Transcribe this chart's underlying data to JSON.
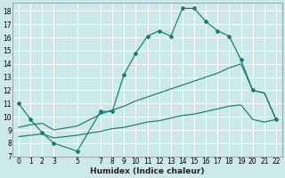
{
  "xlabel": "Humidex (Indice chaleur)",
  "bg_color": "#cce8e8",
  "grid_color": "#ffffff",
  "line_color": "#1a7a6e",
  "xlim": [
    -0.5,
    22.5
  ],
  "ylim": [
    7,
    18.6
  ],
  "xticks": [
    0,
    1,
    2,
    3,
    5,
    7,
    8,
    9,
    10,
    11,
    12,
    13,
    14,
    15,
    16,
    17,
    18,
    19,
    20,
    21,
    22
  ],
  "yticks": [
    7,
    8,
    9,
    10,
    11,
    12,
    13,
    14,
    15,
    16,
    17,
    18
  ],
  "line1_x": [
    0,
    1,
    2,
    3,
    5,
    7,
    8,
    9,
    10,
    11,
    12,
    13,
    14,
    15,
    16,
    17,
    18,
    19,
    20,
    21,
    22
  ],
  "line1_y": [
    11,
    9.8,
    8.8,
    8.0,
    7.4,
    10.4,
    10.4,
    13.2,
    14.8,
    16.1,
    16.5,
    16.1,
    18.2,
    18.2,
    17.2,
    16.5,
    16.1,
    14.3,
    12.0,
    11.8,
    9.8
  ],
  "line1_markers": [
    0,
    1,
    2,
    3,
    5,
    7,
    8,
    9,
    10,
    11,
    12,
    13,
    14,
    15,
    16,
    17,
    18,
    19,
    20,
    22
  ],
  "line1_markers_y": [
    11,
    9.8,
    8.8,
    8.0,
    7.4,
    10.4,
    10.4,
    13.2,
    14.8,
    16.1,
    16.5,
    16.1,
    18.2,
    18.2,
    17.2,
    16.5,
    16.1,
    14.3,
    12.0,
    9.8
  ],
  "line2_x": [
    0,
    1,
    2,
    3,
    5,
    7,
    8,
    9,
    10,
    11,
    12,
    13,
    14,
    15,
    16,
    17,
    18,
    19,
    20,
    21,
    22
  ],
  "line2_y": [
    9.2,
    9.4,
    9.5,
    9.0,
    9.3,
    10.2,
    10.5,
    10.8,
    11.2,
    11.5,
    11.8,
    12.1,
    12.4,
    12.7,
    13.0,
    13.3,
    13.7,
    14.0,
    12.0,
    11.8,
    9.8
  ],
  "line3_x": [
    0,
    1,
    2,
    3,
    5,
    7,
    8,
    9,
    10,
    11,
    12,
    13,
    14,
    15,
    16,
    17,
    18,
    19,
    20,
    21,
    22
  ],
  "line3_y": [
    8.5,
    8.6,
    8.7,
    8.4,
    8.6,
    8.9,
    9.1,
    9.2,
    9.4,
    9.6,
    9.7,
    9.9,
    10.1,
    10.2,
    10.4,
    10.6,
    10.8,
    10.9,
    9.8,
    9.6,
    9.8
  ],
  "tick_fontsize": 5.5,
  "xlabel_fontsize": 6.5
}
